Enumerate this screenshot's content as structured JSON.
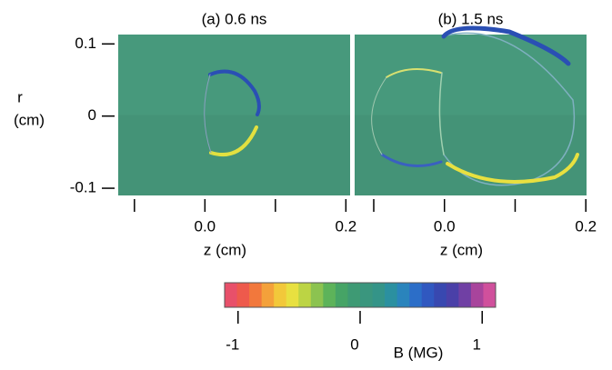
{
  "chart_data": [
    {
      "type": "heatmap",
      "title": "(a) 0.6 ns",
      "xlabel": "z (cm)",
      "ylabel": [
        "r",
        "(cm)"
      ],
      "xlim": [
        -0.123,
        0.206
      ],
      "xticks": [
        {
          "value": -0.1,
          "label": null
        },
        {
          "value": 0,
          "label": "0.0"
        },
        {
          "value": 0.1,
          "label": null
        },
        0.2
      ],
      "ylim": [
        -0.11,
        0.113
      ],
      "yticks": [
        0.1,
        0,
        -0.1
      ],
      "background": "#47997c"
    },
    {
      "type": "heatmap",
      "title": "(b) 1.5 ns",
      "xlabel": "z (cm)",
      "xlim": [
        -0.127,
        0.201
      ],
      "xticks": [
        {
          "value": -0.1,
          "label": null
        },
        {
          "value": 0,
          "label": "0.0"
        },
        {
          "value": 0.1,
          "label": null
        },
        0.2
      ],
      "ylim": [
        -0.11,
        0.113
      ],
      "background": "#47997c"
    },
    {
      "type": "colorbar",
      "label": "B (MG)",
      "clim": [
        -1.11,
        1.11
      ],
      "ticks": [
        -1,
        0,
        1
      ],
      "colors": [
        "#e8506a",
        "#ee5a4c",
        "#f2783c",
        "#f4a13a",
        "#f2c83a",
        "#e8e040",
        "#bcd444",
        "#8cc350",
        "#5db35a",
        "#46a466",
        "#3e9a74",
        "#3a967e",
        "#349488",
        "#2b90a0",
        "#2a84bc",
        "#2c6ec8",
        "#3058c0",
        "#3848b0",
        "#4a40a8",
        "#7040a4",
        "#a8449c",
        "#d0509c"
      ]
    }
  ]
}
